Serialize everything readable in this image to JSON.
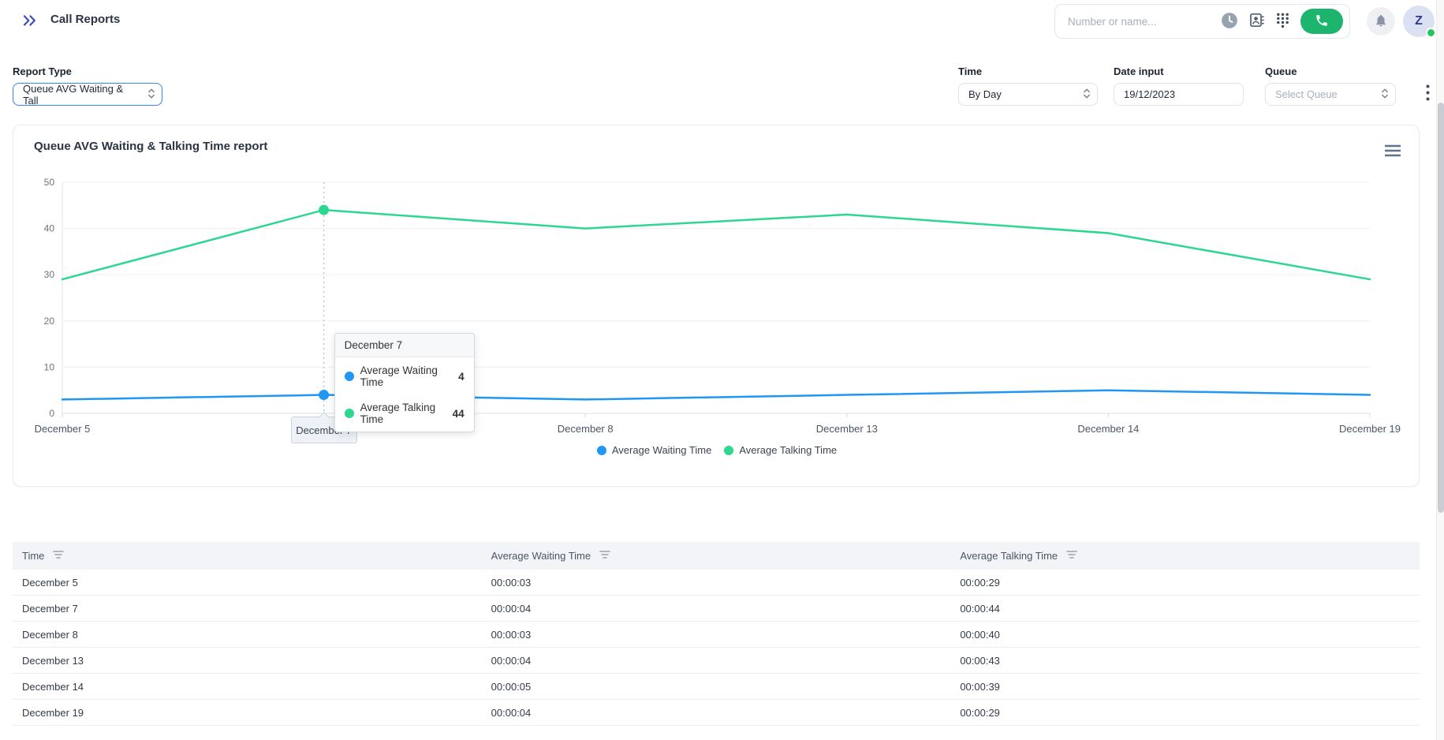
{
  "header": {
    "title": "Call Reports",
    "search_placeholder": "Number or name...",
    "avatar_initial": "Z"
  },
  "filters": {
    "report_type": {
      "label": "Report Type",
      "value": "Queue AVG Waiting & Tall"
    },
    "time": {
      "label": "Time",
      "value": "By Day"
    },
    "date": {
      "label": "Date input",
      "value": "19/12/2023"
    },
    "queue": {
      "label": "Queue",
      "placeholder": "Select Queue"
    }
  },
  "chart_card": {
    "title": "Queue AVG Waiting & Talking Time report"
  },
  "chart_data": {
    "type": "line",
    "title": "Queue AVG Waiting & Talking Time report",
    "categories": [
      "December 5",
      "December 7",
      "December 8",
      "December 13",
      "December 14",
      "December 19"
    ],
    "series": [
      {
        "name": "Average Waiting Time",
        "color": "#2196f3",
        "values": [
          3,
          4,
          3,
          4,
          5,
          4
        ]
      },
      {
        "name": "Average Talking Time",
        "color": "#2ed790",
        "values": [
          29,
          44,
          40,
          43,
          39,
          29
        ]
      }
    ],
    "ylim": [
      0,
      50
    ],
    "yticks": [
      0,
      10,
      20,
      30,
      40,
      50
    ],
    "grid": true,
    "legend_position": "bottom",
    "highlight_index": 1,
    "tooltip": {
      "title": "December 7",
      "rows": [
        {
          "label": "Average Waiting Time",
          "value": "4",
          "color": "#2196f3"
        },
        {
          "label": "Average Talking Time",
          "value": "44",
          "color": "#2ed790"
        }
      ]
    }
  },
  "table": {
    "columns": [
      "Time",
      "Average Waiting Time",
      "Average Talking Time"
    ],
    "rows": [
      [
        "December 5",
        "00:00:03",
        "00:00:29"
      ],
      [
        "December 7",
        "00:00:04",
        "00:00:44"
      ],
      [
        "December 8",
        "00:00:03",
        "00:00:40"
      ],
      [
        "December 13",
        "00:00:04",
        "00:00:43"
      ],
      [
        "December 14",
        "00:00:05",
        "00:00:39"
      ],
      [
        "December 19",
        "00:00:04",
        "00:00:29"
      ]
    ]
  },
  "icons": {
    "collapse": "chevrons-right",
    "clock": "clock",
    "contacts": "contact-card",
    "dialpad": "dialpad-grid",
    "call": "phone-handset",
    "notifications": "bell",
    "chart_menu": "hamburger-lines",
    "filters_more": "kebab-vertical",
    "column_filter": "filter-lines",
    "select_chevron": "up-down-chevrons"
  },
  "colors": {
    "accent_blue": "#2196f3",
    "accent_green": "#2ed790",
    "call_button_green": "#1db56d",
    "focus_border_blue": "#3b82f6",
    "status_online_green": "#22c55e"
  }
}
